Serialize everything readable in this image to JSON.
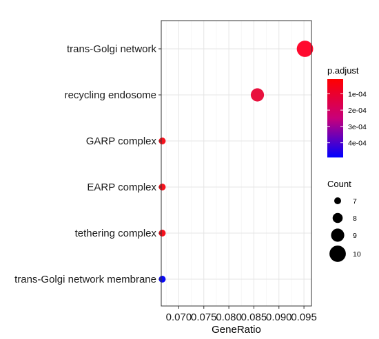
{
  "chart_data": {
    "type": "scatter",
    "xlabel": "GeneRatio",
    "ylabel": "",
    "xlim": [
      0.0665,
      0.0965
    ],
    "x_ticks": [
      "0.070",
      "0.075",
      "0.080",
      "0.085",
      "0.090",
      "0.095"
    ],
    "x_tick_values": [
      0.07,
      0.075,
      0.08,
      0.085,
      0.09,
      0.095
    ],
    "categories": [
      "trans-Golgi network",
      "recycling endosome",
      "GARP complex",
      "EARP complex",
      "tethering complex",
      "trans-Golgi network membrane"
    ],
    "points": [
      {
        "term": "trans-Golgi network",
        "gene_ratio": 0.0952,
        "count": 10,
        "p_adjust": 2e-05,
        "color": "#ff0a2e"
      },
      {
        "term": "recycling endosome",
        "gene_ratio": 0.0857,
        "count": 9,
        "p_adjust": 4e-05,
        "color": "#e8113e"
      },
      {
        "term": "GARP complex",
        "gene_ratio": 0.0667,
        "count": 7,
        "p_adjust": 2e-05,
        "color": "#f6131e"
      },
      {
        "term": "EARP complex",
        "gene_ratio": 0.0667,
        "count": 7,
        "p_adjust": 2e-05,
        "color": "#f6131e"
      },
      {
        "term": "tethering complex",
        "gene_ratio": 0.0667,
        "count": 7,
        "p_adjust": 2e-05,
        "color": "#f6131e"
      },
      {
        "term": "trans-Golgi network membrane",
        "gene_ratio": 0.0667,
        "count": 7,
        "p_adjust": 0.00047,
        "color": "#0a0af5"
      }
    ],
    "grid": true,
    "color_legend": {
      "title": "p.adjust",
      "tick_labels": [
        "1e-04",
        "2e-04",
        "3e-04",
        "4e-04"
      ],
      "tick_values": [
        0.0001,
        0.0002,
        0.0003,
        0.0004
      ],
      "range": [
        1e-05,
        0.00049
      ],
      "low_color": "#ff0000",
      "high_color": "#0000ff"
    },
    "size_legend": {
      "title": "Count",
      "labels": [
        "7",
        "8",
        "9",
        "10"
      ],
      "values": [
        7,
        8,
        9,
        10
      ]
    }
  }
}
